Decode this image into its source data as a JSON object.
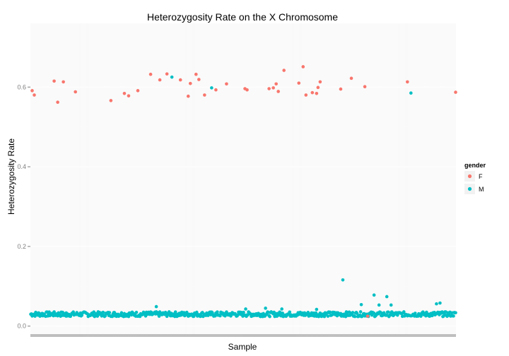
{
  "chart_data": {
    "type": "scatter",
    "title": "Heterozygosity Rate on the X Chromosome",
    "xlabel": "Sample",
    "ylabel": "Heterozygosity Rate",
    "ylim": [
      -0.02,
      0.76
    ],
    "yticks": [
      0.0,
      0.2,
      0.4,
      0.6
    ],
    "ytick_labels": [
      "0.0",
      "0.2",
      "0.4",
      "0.6"
    ],
    "x_count": 600,
    "grid": true,
    "legend": {
      "title": "gender",
      "placement": "right",
      "entries": [
        {
          "label": "F",
          "color": "#F8766D"
        },
        {
          "label": "M",
          "color": "#00BFC4"
        }
      ]
    },
    "series": [
      {
        "name": "F",
        "color": "#F8766D",
        "x": [
          2,
          5,
          33,
          38,
          46,
          63,
          113,
          132,
          138,
          151,
          169,
          182,
          192,
          211,
          222,
          225,
          233,
          237,
          245,
          261,
          276,
          302,
          305,
          336,
          342,
          346,
          349,
          357,
          378,
          384,
          388,
          397,
          403,
          405,
          408,
          437,
          452,
          471,
          475,
          531,
          599
        ],
        "y": [
          0.591,
          0.58,
          0.615,
          0.562,
          0.613,
          0.588,
          0.566,
          0.584,
          0.578,
          0.591,
          0.632,
          0.618,
          0.633,
          0.618,
          0.577,
          0.609,
          0.632,
          0.619,
          0.58,
          0.593,
          0.608,
          0.596,
          0.593,
          0.596,
          0.598,
          0.608,
          0.589,
          0.642,
          0.61,
          0.651,
          0.58,
          0.586,
          0.584,
          0.599,
          0.613,
          0.595,
          0.622,
          0.601,
          0.0,
          0.613,
          0.587
        ]
      },
      {
        "name": "M",
        "color": "#00BFC4",
        "x": [
          50,
          177,
          199,
          255,
          303,
          331,
          354,
          403,
          440,
          466,
          484,
          491,
          502,
          508,
          536,
          572,
          577
        ],
        "y": [
          0.025,
          0.049,
          0.625,
          0.598,
          0.043,
          0.045,
          0.043,
          0.042,
          0.116,
          0.054,
          0.078,
          0.053,
          0.074,
          0.053,
          0.585,
          0.056,
          0.058
        ],
        "baseline": {
          "from": 0,
          "to": 600,
          "value": 0.03,
          "spread": 0.006
        }
      }
    ]
  }
}
